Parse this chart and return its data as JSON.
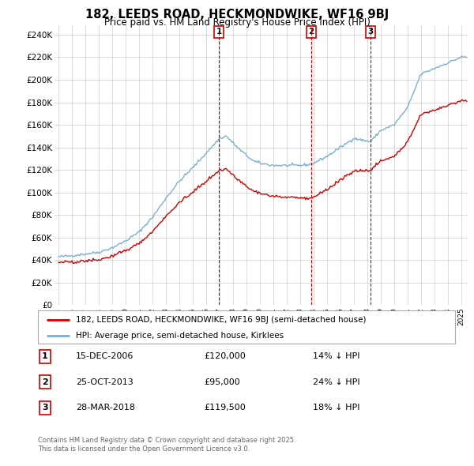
{
  "title": "182, LEEDS ROAD, HECKMONDWIKE, WF16 9BJ",
  "subtitle": "Price paid vs. HM Land Registry's House Price Index (HPI)",
  "ylabel_ticks": [
    "£0",
    "£20K",
    "£40K",
    "£60K",
    "£80K",
    "£100K",
    "£120K",
    "£140K",
    "£160K",
    "£180K",
    "£200K",
    "£220K",
    "£240K"
  ],
  "ytick_values": [
    0,
    20000,
    40000,
    60000,
    80000,
    100000,
    120000,
    140000,
    160000,
    180000,
    200000,
    220000,
    240000
  ],
  "xlim_start": 1994.7,
  "xlim_end": 2025.5,
  "ylim_top": 248000,
  "legend_line1": "182, LEEDS ROAD, HECKMONDWIKE, WF16 9BJ (semi-detached house)",
  "legend_line2": "HPI: Average price, semi-detached house, Kirklees",
  "sale1_label": "1",
  "sale1_date": "15-DEC-2006",
  "sale1_price": "£120,000",
  "sale1_hpi": "14% ↓ HPI",
  "sale2_label": "2",
  "sale2_date": "25-OCT-2013",
  "sale2_price": "£95,000",
  "sale2_hpi": "24% ↓ HPI",
  "sale3_label": "3",
  "sale3_date": "28-MAR-2018",
  "sale3_price": "£119,500",
  "sale3_hpi": "18% ↓ HPI",
  "footer": "Contains HM Land Registry data © Crown copyright and database right 2025.\nThis data is licensed under the Open Government Licence v3.0.",
  "sale_color": "#cc0000",
  "hpi_color": "#7ab0d4",
  "sale_year_1": 2006.96,
  "sale_price_1": 120000,
  "sale_year_2": 2013.82,
  "sale_price_2": 95000,
  "sale_year_3": 2018.24,
  "sale_price_3": 119500
}
